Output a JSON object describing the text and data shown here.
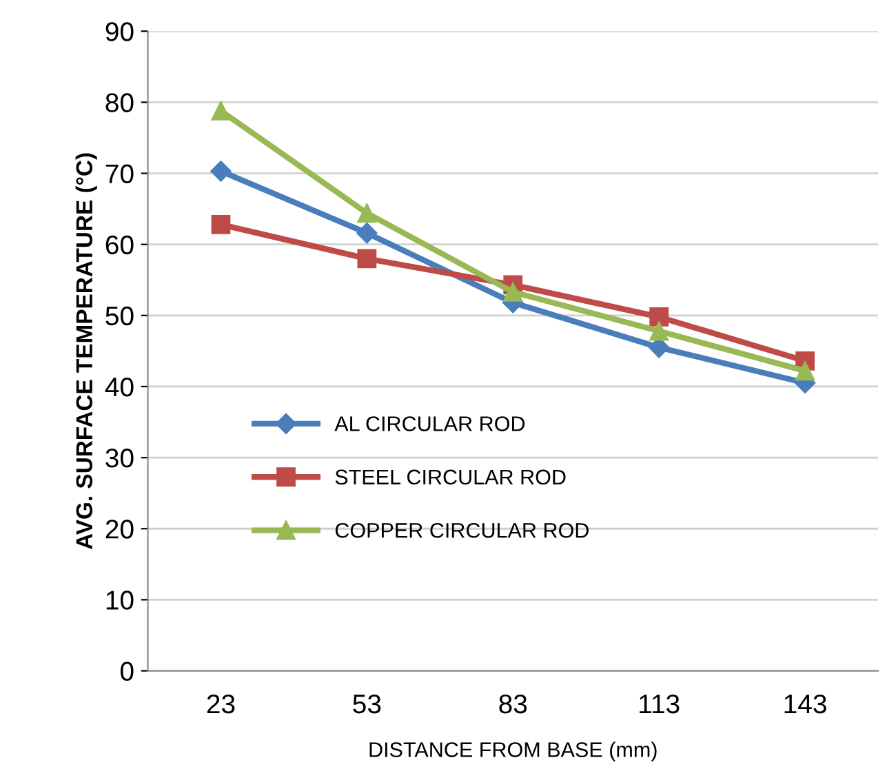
{
  "chart_data": {
    "type": "line",
    "xlabel": "DISTANCE FROM BASE (mm)",
    "ylabel": "AVG. SURFACE TEMPERATURE (°C)",
    "categories": [
      "23",
      "53",
      "83",
      "113",
      "143"
    ],
    "series": [
      {
        "name": "AL CIRCULAR ROD",
        "color": "#4a7ebb",
        "marker": "diamond",
        "values": [
          70.3,
          61.6,
          51.8,
          45.5,
          40.5
        ]
      },
      {
        "name": "STEEL CIRCULAR ROD",
        "color": "#be4b48",
        "marker": "square",
        "values": [
          62.8,
          58.0,
          54.3,
          49.8,
          43.6
        ]
      },
      {
        "name": "COPPER CIRCULAR ROD",
        "color": "#98b954",
        "marker": "triangle",
        "values": [
          78.8,
          64.4,
          53.3,
          47.8,
          42.2
        ]
      }
    ],
    "ylim": [
      0,
      90
    ],
    "yticks": [
      0,
      10,
      20,
      30,
      40,
      50,
      60,
      70,
      80,
      90
    ],
    "grid": "y",
    "legend": "center left",
    "line_style": "solid"
  }
}
